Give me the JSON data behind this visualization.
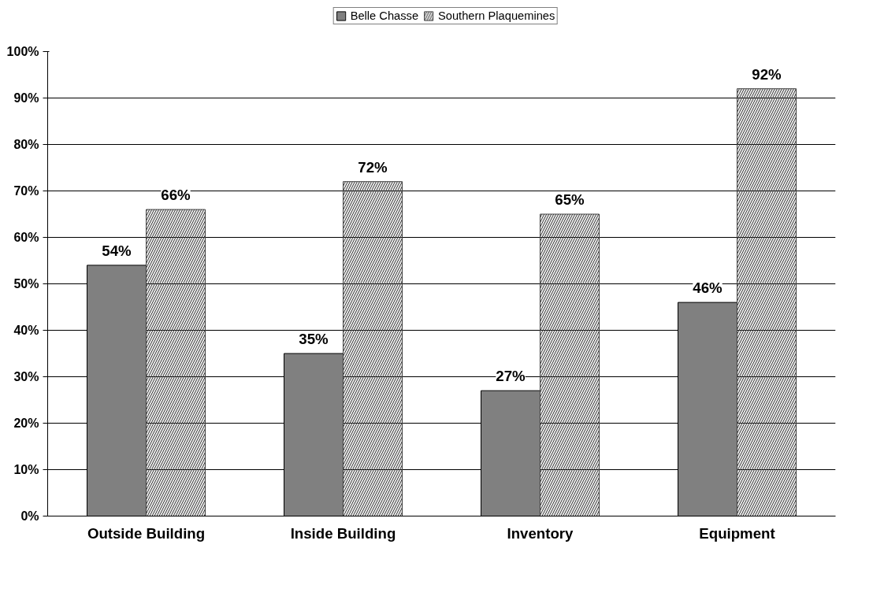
{
  "chart_data": {
    "type": "bar",
    "categories": [
      "Outside Building",
      "Inside Building",
      "Inventory",
      "Equipment"
    ],
    "series": [
      {
        "name": "Belle Chasse",
        "color": "#808080",
        "values": [
          54,
          35,
          27,
          46
        ],
        "value_labels": [
          "54%",
          "35%",
          "27%",
          "46%"
        ]
      },
      {
        "name": "Southern Plaquemines",
        "color": "#404040",
        "values": [
          66,
          72,
          65,
          92
        ],
        "value_labels": [
          "66%",
          "72%",
          "65%",
          "92%"
        ]
      }
    ],
    "ylim": [
      0,
      100
    ],
    "yticks": [
      {
        "value": 0,
        "label": "0%"
      },
      {
        "value": 10,
        "label": "10%"
      },
      {
        "value": 20,
        "label": "20%"
      },
      {
        "value": 30,
        "label": "30%"
      },
      {
        "value": 40,
        "label": "40%"
      },
      {
        "value": 50,
        "label": "50%"
      },
      {
        "value": 60,
        "label": "60%"
      },
      {
        "value": 70,
        "label": "70%"
      },
      {
        "value": 80,
        "label": "80%"
      },
      {
        "value": 90,
        "label": "90%"
      },
      {
        "value": 100,
        "label": "100%"
      }
    ],
    "grid": "y",
    "legend": "top"
  }
}
